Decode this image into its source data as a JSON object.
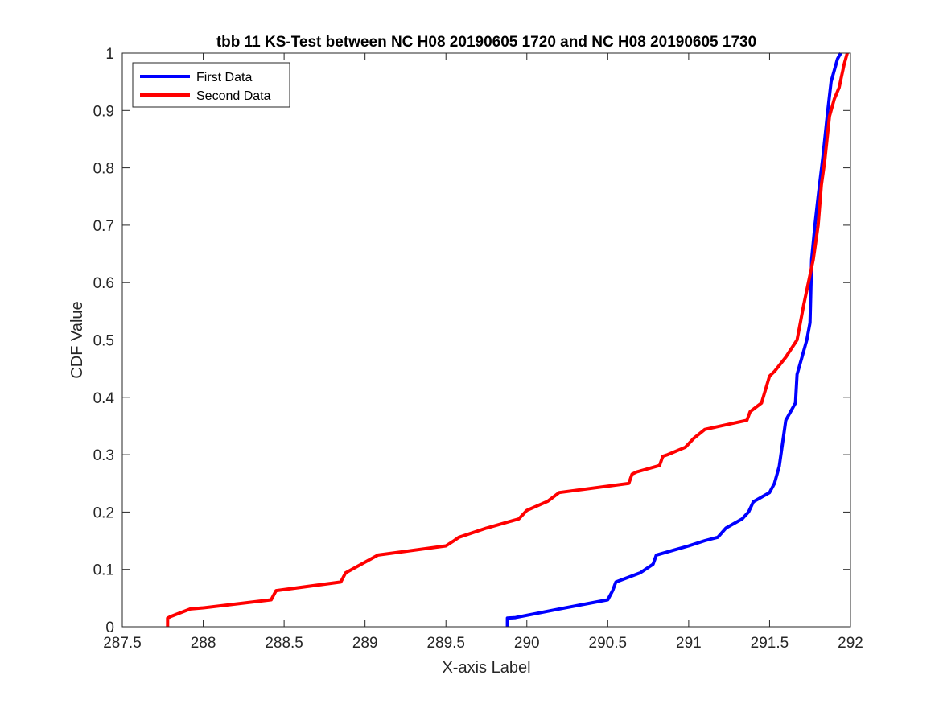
{
  "chart_data": {
    "type": "line",
    "title": "tbb 11 KS-Test between NC H08 20190605 1720 and NC H08 20190605 1730",
    "xlabel": "X-axis Label",
    "ylabel": "CDF Value",
    "xlim": [
      287.5,
      292
    ],
    "ylim": [
      0,
      1
    ],
    "xticks": [
      287.5,
      288,
      288.5,
      289,
      289.5,
      290,
      290.5,
      291,
      291.5,
      292
    ],
    "xtick_labels": [
      "287.5",
      "288",
      "288.5",
      "289",
      "289.5",
      "290",
      "290.5",
      "291",
      "291.5",
      "292"
    ],
    "yticks": [
      0,
      0.1,
      0.2,
      0.3,
      0.4,
      0.5,
      0.6,
      0.7,
      0.8,
      0.9,
      1
    ],
    "ytick_labels": [
      "0",
      "0.1",
      "0.2",
      "0.3",
      "0.4",
      "0.5",
      "0.6",
      "0.7",
      "0.8",
      "0.9",
      "1"
    ],
    "grid": false,
    "legend_position": "top-left",
    "series": [
      {
        "name": "First Data",
        "color": "#0000ff",
        "x": [
          289.88,
          289.88,
          289.93,
          290.2,
          290.5,
          290.53,
          290.55,
          290.7,
          290.78,
          290.8,
          290.9,
          291.0,
          291.1,
          291.18,
          291.23,
          291.33,
          291.37,
          291.4,
          291.5,
          291.53,
          291.56,
          291.6,
          291.63,
          291.66,
          291.67,
          291.7,
          291.73,
          291.75,
          291.76,
          291.78,
          291.8,
          291.83,
          291.86,
          291.88,
          291.92,
          291.94
        ],
        "y": [
          0,
          0.015,
          0.016,
          0.031,
          0.047,
          0.063,
          0.078,
          0.094,
          0.109,
          0.125,
          0.133,
          0.141,
          0.15,
          0.156,
          0.172,
          0.188,
          0.2,
          0.218,
          0.234,
          0.25,
          0.28,
          0.36,
          0.375,
          0.39,
          0.44,
          0.47,
          0.5,
          0.53,
          0.64,
          0.7,
          0.75,
          0.82,
          0.9,
          0.95,
          0.99,
          1.0
        ]
      },
      {
        "name": "Second Data",
        "color": "#ff0000",
        "x": [
          287.78,
          287.78,
          287.8,
          287.92,
          288.0,
          288.42,
          288.45,
          288.85,
          288.88,
          289.08,
          289.5,
          289.55,
          289.58,
          289.75,
          289.95,
          290.0,
          290.13,
          290.2,
          290.63,
          290.65,
          290.68,
          290.82,
          290.84,
          290.87,
          290.98,
          291.03,
          291.1,
          291.36,
          291.38,
          291.45,
          291.5,
          291.53,
          291.6,
          291.67,
          291.69,
          291.71,
          291.74,
          291.77,
          291.8,
          291.82,
          291.84,
          291.87,
          291.9,
          291.93,
          291.96,
          291.98
        ],
        "y": [
          0,
          0.015,
          0.018,
          0.031,
          0.033,
          0.047,
          0.063,
          0.078,
          0.094,
          0.125,
          0.141,
          0.15,
          0.156,
          0.172,
          0.188,
          0.203,
          0.219,
          0.234,
          0.25,
          0.266,
          0.27,
          0.281,
          0.297,
          0.3,
          0.313,
          0.328,
          0.344,
          0.36,
          0.375,
          0.39,
          0.437,
          0.445,
          0.47,
          0.5,
          0.53,
          0.56,
          0.6,
          0.64,
          0.7,
          0.77,
          0.81,
          0.89,
          0.92,
          0.94,
          0.98,
          1.0
        ]
      }
    ]
  }
}
